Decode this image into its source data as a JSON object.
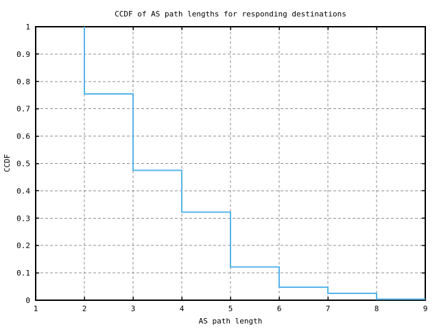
{
  "chart_data": {
    "type": "line",
    "subtype": "step-ccdf",
    "title": "CCDF of AS path lengths for responding destinations",
    "xlabel": "AS path length",
    "ylabel": "CCDF",
    "xlim": [
      1,
      9
    ],
    "ylim": [
      0,
      1
    ],
    "x_ticks": [
      1,
      2,
      3,
      4,
      5,
      6,
      7,
      8,
      9
    ],
    "x_tick_labels": [
      "1",
      "2",
      "3",
      "4",
      "5",
      "6",
      "7",
      "8",
      "9"
    ],
    "y_ticks": [
      0,
      0.1,
      0.2,
      0.3,
      0.4,
      0.5,
      0.6,
      0.7,
      0.8,
      0.9,
      1
    ],
    "y_tick_labels": [
      "0",
      "0.1",
      "0.2",
      "0.3",
      "0.4",
      "0.5",
      "0.6",
      "0.7",
      "0.8",
      "0.9",
      "1"
    ],
    "grid": true,
    "legend": "none",
    "tick_style": "inward-mirrored-all-sides",
    "series": [
      {
        "name": "ccdf-of-as-path-length",
        "color": "#56b4e9",
        "step_points": [
          {
            "x": 2,
            "ccdf": 1.0
          },
          {
            "x": 2,
            "ccdf": 0.755
          },
          {
            "x": 3,
            "ccdf": 0.755
          },
          {
            "x": 3,
            "ccdf": 0.475
          },
          {
            "x": 4,
            "ccdf": 0.475
          },
          {
            "x": 4,
            "ccdf": 0.322
          },
          {
            "x": 5,
            "ccdf": 0.322
          },
          {
            "x": 5,
            "ccdf": 0.122
          },
          {
            "x": 6,
            "ccdf": 0.122
          },
          {
            "x": 6,
            "ccdf": 0.048
          },
          {
            "x": 7,
            "ccdf": 0.048
          },
          {
            "x": 7,
            "ccdf": 0.025
          },
          {
            "x": 8,
            "ccdf": 0.025
          },
          {
            "x": 8,
            "ccdf": 0.004
          },
          {
            "x": 9,
            "ccdf": 0.004
          }
        ]
      }
    ],
    "colors": {
      "line": "#56b4e9",
      "grid": "#909090",
      "frame": "#000000",
      "text": "#000000",
      "background": "#ffffff"
    }
  }
}
